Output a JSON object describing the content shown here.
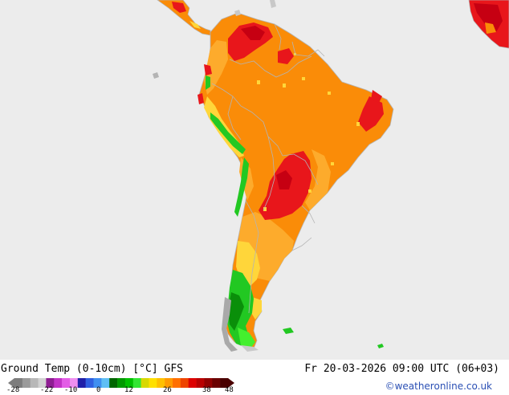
{
  "title": "Ground Temp (0-10cm) [°C] GFS",
  "datetime": "Fr 20-03-2026 09:00 UTC (06+03)",
  "credit": "©weatheronline.co.uk",
  "legend": {
    "ticks": [
      "-28",
      "-22",
      "-10",
      "0",
      "12",
      "26",
      "38",
      "48"
    ],
    "colors": [
      "#7d7d7d",
      "#9b9b9b",
      "#b8b8b8",
      "#d2d2d2",
      "#8f1d93",
      "#c233c6",
      "#e35ce6",
      "#ef8ff0",
      "#1f1fa8",
      "#2f5fe0",
      "#3f8ff0",
      "#5fbff5",
      "#006600",
      "#009900",
      "#00c000",
      "#33e633",
      "#d8d800",
      "#ffe000",
      "#ffc000",
      "#ff9a00",
      "#ff7000",
      "#ee4400",
      "#dd0000",
      "#b80000",
      "#900000",
      "#6a0000",
      "#4a0000"
    ]
  },
  "palette": {
    "ocean": "#ececec",
    "orange": "#fa8c08",
    "light_orange": "#fdab2c",
    "yellow": "#ffd63a",
    "red": "#e8161b",
    "dark_red": "#c60012",
    "green": "#22c822",
    "dark_green": "#0a8f0a",
    "bright_green": "#44ef2e",
    "border": "#b4b4b4"
  }
}
